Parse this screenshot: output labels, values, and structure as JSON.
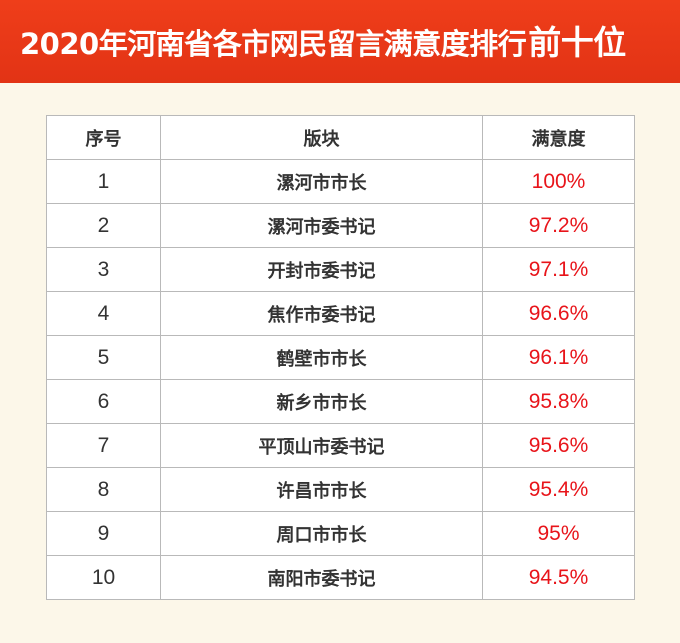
{
  "banner": {
    "title_main": "2020年河南省各市网民留言满意度排行",
    "title_emph": "前十位"
  },
  "table": {
    "headers": [
      "序号",
      "版块",
      "满意度"
    ],
    "rows": [
      {
        "rank": "1",
        "name": "漯河市市长",
        "score": "100%"
      },
      {
        "rank": "2",
        "name": "漯河市委书记",
        "score": "97.2%"
      },
      {
        "rank": "3",
        "name": "开封市委书记",
        "score": "97.1%"
      },
      {
        "rank": "4",
        "name": "焦作市委书记",
        "score": "96.6%"
      },
      {
        "rank": "5",
        "name": "鹤壁市市长",
        "score": "96.1%"
      },
      {
        "rank": "6",
        "name": "新乡市市长",
        "score": "95.8%"
      },
      {
        "rank": "7",
        "name": "平顶山市委书记",
        "score": "95.6%"
      },
      {
        "rank": "8",
        "name": "许昌市市长",
        "score": "95.4%"
      },
      {
        "rank": "9",
        "name": "周口市市长",
        "score": "95%"
      },
      {
        "rank": "10",
        "name": "南阳市委书记",
        "score": "94.5%"
      }
    ]
  },
  "colors": {
    "banner_bg": "#e8391a",
    "page_bg": "#fcf7e9",
    "score_text": "#e8141a",
    "border": "#b9b9b9"
  }
}
